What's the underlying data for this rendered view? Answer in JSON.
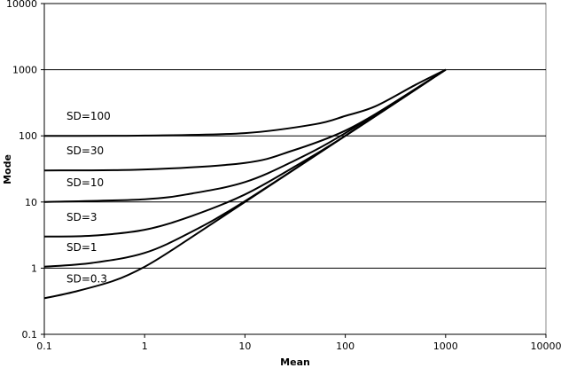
{
  "chart_data": {
    "type": "line",
    "title": "",
    "xlabel": "Mean",
    "ylabel": "Mode",
    "xscale": "log",
    "yscale": "log",
    "xlim": [
      0.1,
      10000
    ],
    "ylim": [
      0.1,
      10000
    ],
    "grid": "horizontal major gridlines",
    "legend": "none; series labelled inline on the chart",
    "x_tick_labels": [
      "0.1",
      "1",
      "10",
      "100",
      "1000",
      "10000"
    ],
    "y_tick_labels": [
      "0.1",
      "1",
      "10",
      "100",
      "1000",
      "10000"
    ],
    "series": [
      {
        "name": "SD=100",
        "x": [
          0.1,
          1,
          10,
          50,
          100,
          200,
          500,
          1000
        ],
        "y": [
          100,
          101,
          110,
          150,
          200,
          280,
          590,
          1000
        ]
      },
      {
        "name": "SD=30",
        "x": [
          0.1,
          1,
          10,
          30,
          100,
          300,
          1000
        ],
        "y": [
          30,
          31,
          39,
          60,
          120,
          310,
          1000
        ]
      },
      {
        "name": "SD=10",
        "x": [
          0.1,
          1,
          3,
          10,
          30,
          100,
          1000
        ],
        "y": [
          10,
          11,
          13.5,
          20,
          41,
          110,
          1000
        ]
      },
      {
        "name": "SD=3",
        "x": [
          0.1,
          0.3,
          1,
          3,
          10,
          30,
          100,
          1000
        ],
        "y": [
          3,
          3.1,
          3.8,
          6.2,
          13,
          33,
          100,
          1000
        ]
      },
      {
        "name": "SD=1",
        "x": [
          0.1,
          0.3,
          1,
          3,
          10,
          100,
          1000
        ],
        "y": [
          1.05,
          1.2,
          1.7,
          3.6,
          10.3,
          100,
          1000
        ]
      },
      {
        "name": "SD=0.3",
        "x": [
          0.1,
          0.2,
          0.5,
          1,
          2,
          10,
          100,
          1000
        ],
        "y": [
          0.35,
          0.44,
          0.65,
          1.05,
          2,
          10,
          100,
          1000
        ]
      }
    ]
  }
}
